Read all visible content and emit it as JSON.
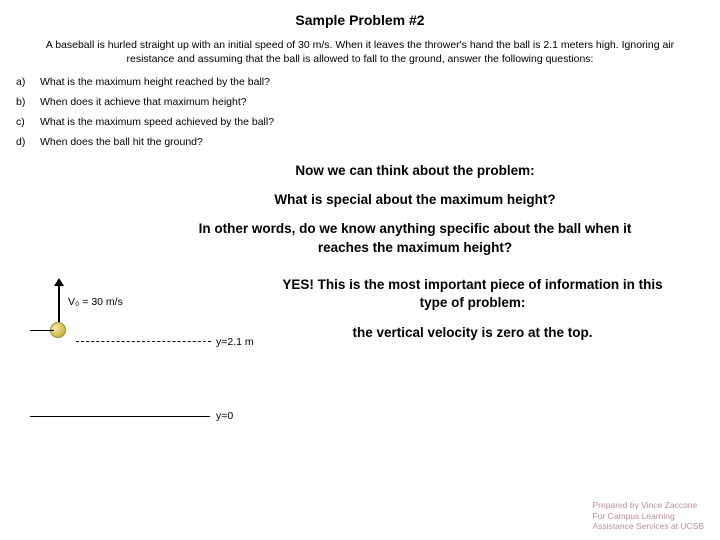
{
  "title": "Sample Problem #2",
  "intro": "A baseball is hurled straight up with an initial speed of 30 m/s. When it leaves the thrower's hand the ball is 2.1 meters high. Ignoring air resistance and assuming that the ball is allowed to fall to the ground, answer the following questions:",
  "questions": [
    {
      "label": "a)",
      "text": "What is the maximum height reached by the ball?"
    },
    {
      "label": "b)",
      "text": "When does it achieve that maximum height?"
    },
    {
      "label": "c)",
      "text": "What is the maximum speed achieved by the ball?"
    },
    {
      "label": "d)",
      "text": "When does the ball hit the ground?"
    }
  ],
  "think": {
    "line1": "Now we can think about the problem:",
    "line2": "What is special about the maximum height?",
    "line3": "In other words, do we know anything specific about the ball when it reaches the maximum height?"
  },
  "diagram": {
    "v0_label": "V₀ = 30 m/s",
    "y_hand": "y=2.1 m",
    "y_ground": "y=0"
  },
  "answer": {
    "line1": "YES!  This is the most important piece of information in this type of problem:",
    "line2": "the vertical velocity is zero at the top."
  },
  "footer": {
    "l1": "Prepared by Vince Zaccone",
    "l2": "For Campus Learning",
    "l3": "Assistance Services at UCSB"
  }
}
